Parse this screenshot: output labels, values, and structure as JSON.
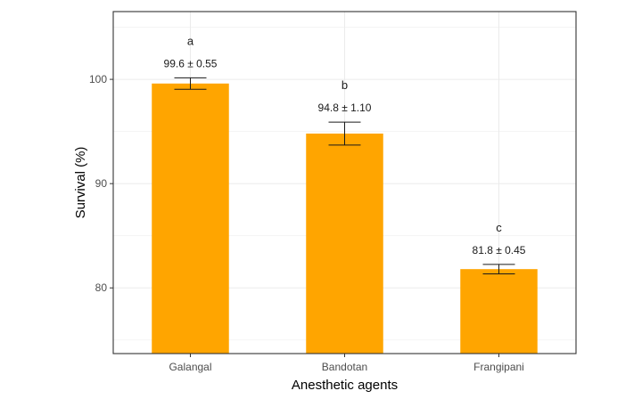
{
  "chart_data": {
    "type": "bar",
    "title": "",
    "xlabel": "Anesthetic agents",
    "ylabel": "Survival (%)",
    "categories": [
      "Galangal",
      "Bandotan",
      "Frangipani"
    ],
    "values": [
      99.6,
      94.8,
      81.8
    ],
    "errors": [
      0.55,
      1.1,
      0.45
    ],
    "value_labels": [
      "99.6 ± 0.55",
      "94.8 ± 1.10",
      "81.8 ± 0.45"
    ],
    "significance_letters": [
      "a",
      "b",
      "c"
    ],
    "ylim": [
      73.7,
      106.5
    ],
    "yticks": [
      80,
      90,
      100
    ],
    "ytick_labels": [
      "80",
      "90",
      "100"
    ],
    "grid": true,
    "legend": null,
    "bar_color": "#FFA500",
    "theme": "bw"
  }
}
